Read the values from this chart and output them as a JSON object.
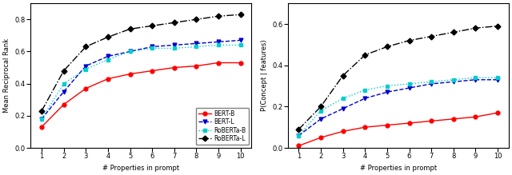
{
  "x": [
    1,
    2,
    3,
    4,
    5,
    6,
    7,
    8,
    9,
    10
  ],
  "left_ylabel": "Mean Reciprocal Rank",
  "right_ylabel": "P(Concept | features)",
  "xlabel": "# Properties in prompt",
  "left": {
    "BERT-B": [
      0.13,
      0.27,
      0.37,
      0.43,
      0.46,
      0.48,
      0.5,
      0.51,
      0.53,
      0.53
    ],
    "BERT-L": [
      0.18,
      0.35,
      0.51,
      0.57,
      0.6,
      0.63,
      0.64,
      0.65,
      0.66,
      0.67
    ],
    "RoBERTa-B": [
      0.18,
      0.4,
      0.49,
      0.55,
      0.6,
      0.62,
      0.62,
      0.63,
      0.64,
      0.64
    ],
    "RoBERTa-L": [
      0.23,
      0.48,
      0.63,
      0.69,
      0.74,
      0.76,
      0.78,
      0.8,
      0.82,
      0.83
    ]
  },
  "right": {
    "BERT-B": [
      0.01,
      0.05,
      0.08,
      0.1,
      0.11,
      0.12,
      0.13,
      0.14,
      0.15,
      0.17
    ],
    "BERT-L": [
      0.06,
      0.14,
      0.19,
      0.24,
      0.27,
      0.29,
      0.31,
      0.32,
      0.33,
      0.33
    ],
    "RoBERTa-B": [
      0.06,
      0.18,
      0.24,
      0.28,
      0.3,
      0.31,
      0.32,
      0.33,
      0.34,
      0.34
    ],
    "RoBERTa-L": [
      0.09,
      0.2,
      0.35,
      0.45,
      0.49,
      0.52,
      0.54,
      0.56,
      0.58,
      0.59
    ]
  },
  "colors": {
    "BERT-B": "#ff0000",
    "BERT-L": "#0000cd",
    "RoBERTa-B": "#00cdcd",
    "RoBERTa-L": "#000000"
  },
  "linestyles": {
    "BERT-B": "solid",
    "BERT-L": "dashed",
    "RoBERTa-B": "dotted",
    "RoBERTa-L": "dashdot"
  },
  "markers": {
    "BERT-B": "o",
    "BERT-L": "v",
    "RoBERTa-B": "s",
    "RoBERTa-L": "D"
  },
  "left_ylim": [
    0.0,
    0.9
  ],
  "right_ylim": [
    0.0,
    0.7
  ],
  "left_yticks": [
    0.0,
    0.2,
    0.4,
    0.6,
    0.8
  ],
  "right_yticks": [
    0.0,
    0.2,
    0.4,
    0.6
  ],
  "xticks": [
    1,
    2,
    3,
    4,
    5,
    6,
    7,
    8,
    9,
    10
  ],
  "legend_labels": [
    "BERT-B",
    "BERT-L",
    "RoBERTa-B",
    "RoBERTa-L"
  ],
  "figsize": [
    6.4,
    2.19
  ],
  "dpi": 100,
  "label_fontsize": 6,
  "tick_fontsize": 6,
  "legend_fontsize": 5.5,
  "markersize": 3.5,
  "linewidth": 1.0
}
